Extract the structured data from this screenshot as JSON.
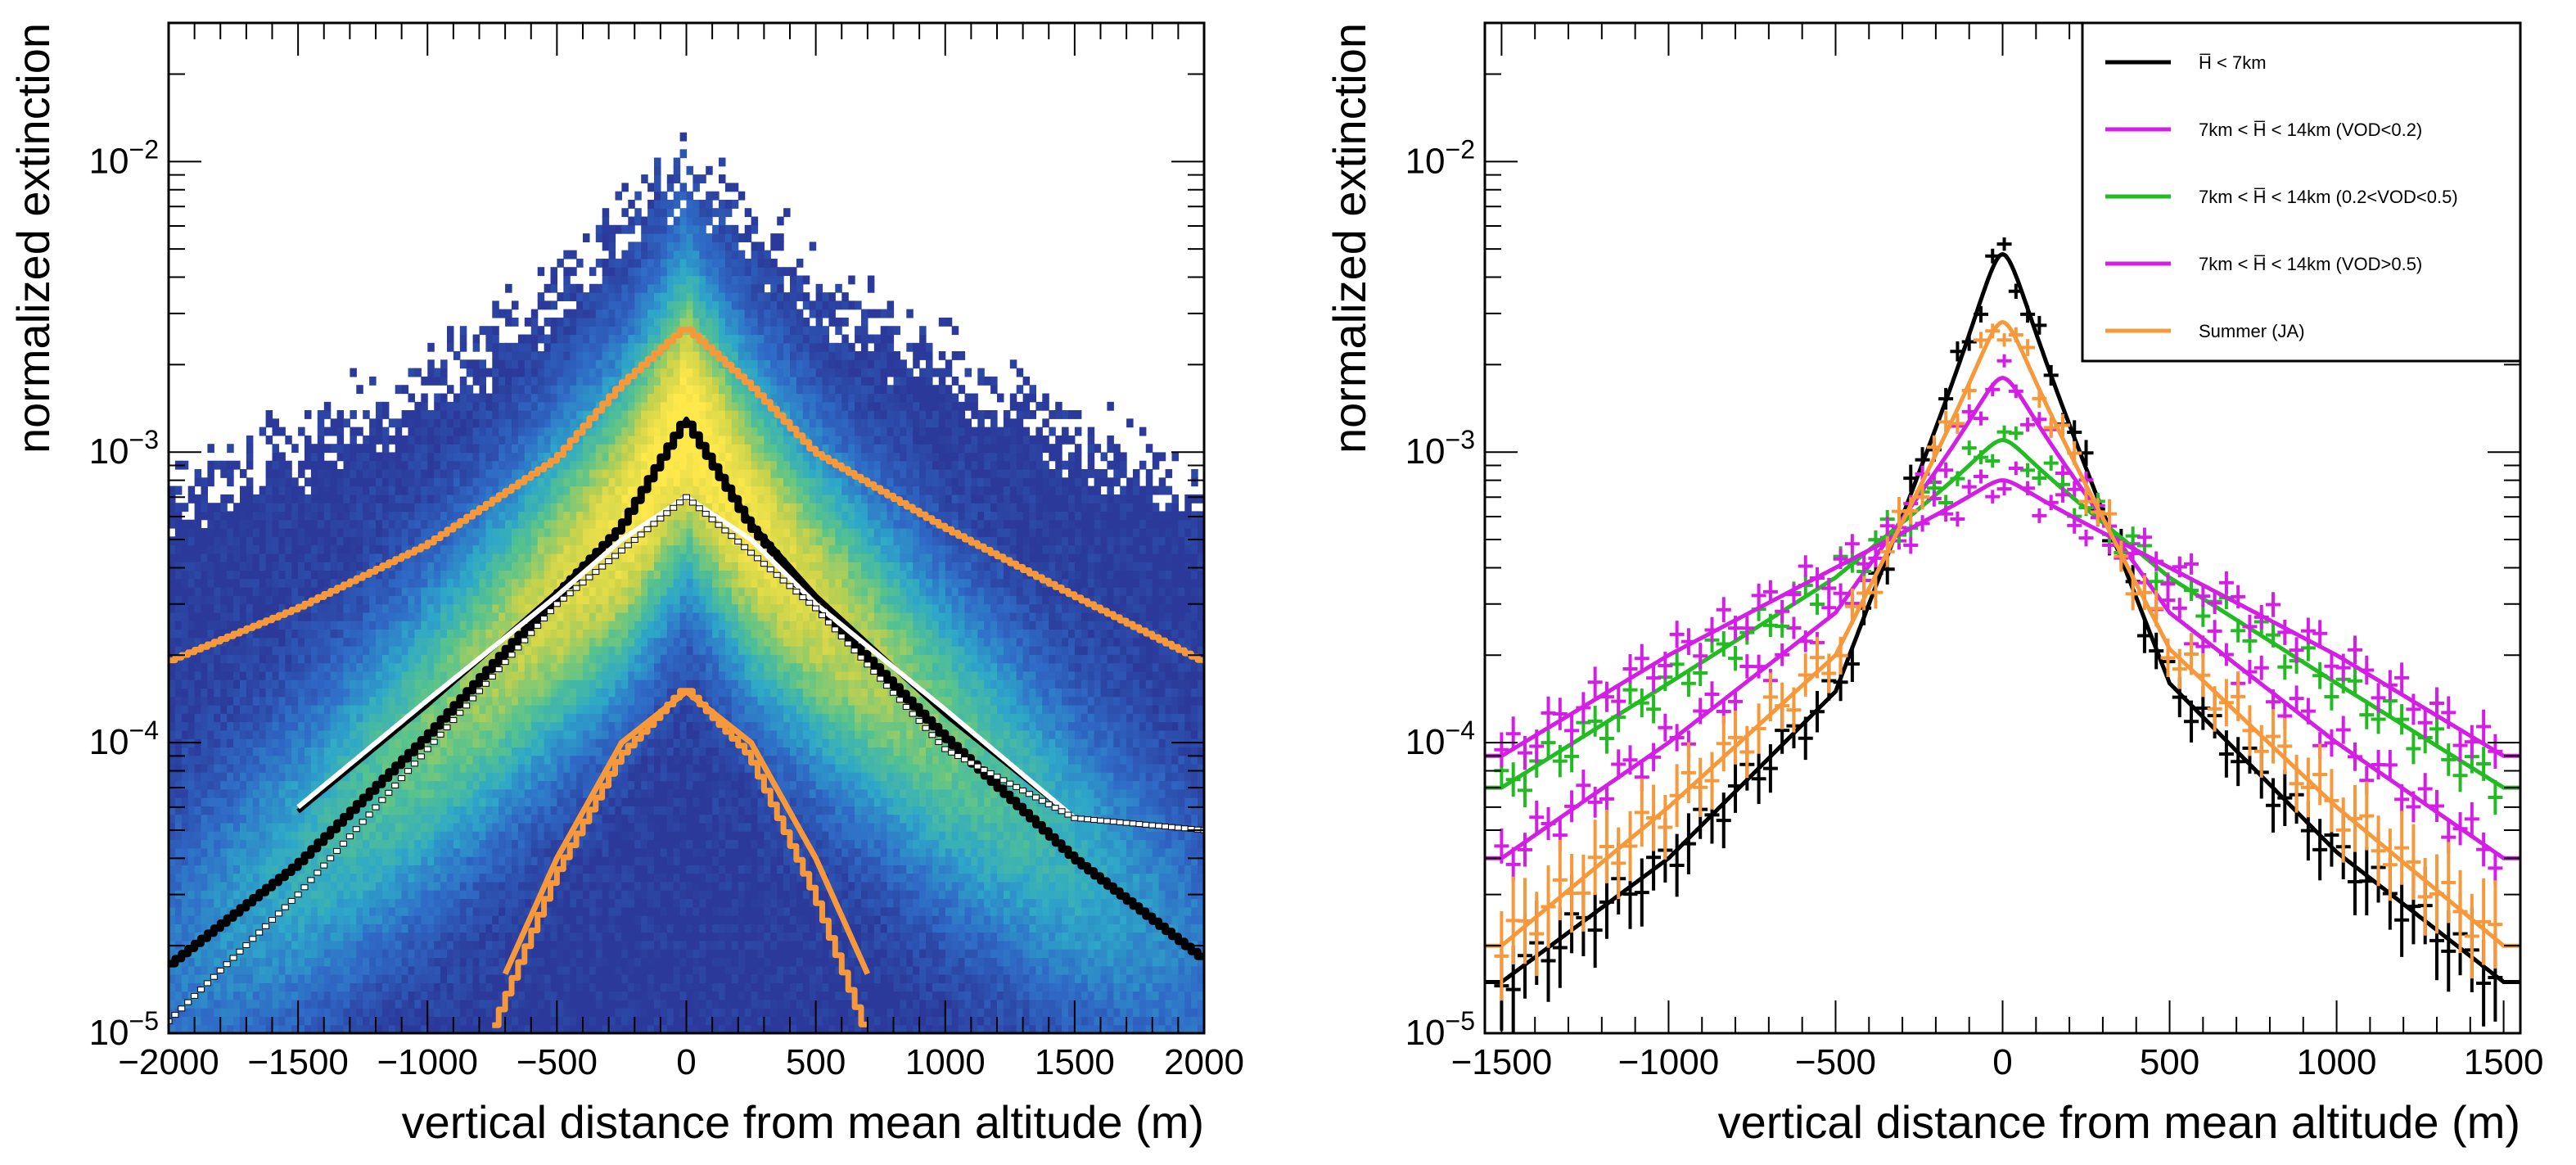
{
  "chart_data": [
    {
      "type": "heatmap",
      "title": "",
      "xlabel": "vertical distance from mean altitude (m)",
      "ylabel": "normalized extinction",
      "xlim": [
        -2000,
        2000
      ],
      "ylim": [
        1e-05,
        0.03
      ],
      "y_scale": "log",
      "grid": false,
      "x_ticks": [
        -2000,
        -1500,
        -1000,
        -500,
        0,
        500,
        1000,
        1500,
        2000
      ],
      "x_tick_labels": [
        "−2000",
        "−1500",
        "−1000",
        "−500",
        "0",
        "500",
        "1000",
        "1500",
        "2000"
      ],
      "y_ticks": [
        1e-05,
        0.0001,
        0.001,
        0.01
      ],
      "y_tick_labels": [
        {
          "base": "10",
          "exp": "−5"
        },
        {
          "base": "10",
          "exp": "−4"
        },
        {
          "base": "10",
          "exp": "−3"
        },
        {
          "base": "10",
          "exp": "−2"
        }
      ],
      "colormap": [
        "#2b3a9a",
        "#2f6bc7",
        "#2ea7c9",
        "#56c38e",
        "#c8d24a",
        "#ffe84a"
      ],
      "series": [
        {
          "color": "#f7993a",
          "kind": "upper percentile profile",
          "x": [
            -2000,
            -1500,
            -1000,
            -500,
            -250,
            0,
            250,
            500,
            1000,
            1500,
            2000
          ],
          "y": [
            0.00019,
            0.00029,
            0.00048,
            0.00095,
            0.0017,
            0.0027,
            0.0017,
            0.001,
            0.00055,
            0.00032,
            0.00019
          ]
        },
        {
          "color": "#000000",
          "kind": "median profile",
          "x": [
            -2000,
            -1500,
            -1000,
            -500,
            -250,
            0,
            250,
            500,
            1000,
            1500,
            2000
          ],
          "y": [
            1.7e-05,
            3.8e-05,
            0.000105,
            0.00032,
            0.00055,
            0.0013,
            0.00056,
            0.0003,
            0.000105,
            4e-05,
            1.8e-05
          ]
        },
        {
          "color": "#000000",
          "kind": "fit",
          "x": [
            -1500,
            -1000,
            -500,
            -250,
            0,
            250,
            500,
            1000,
            1500
          ],
          "y": [
            5.8e-05,
            0.000135,
            0.00033,
            0.00055,
            0.0013,
            0.00057,
            0.00032,
            0.000125,
            5.5e-05
          ]
        },
        {
          "color": "#ffffff",
          "kind": "fit",
          "x": [
            -1500,
            -1000,
            -500,
            -250,
            0,
            250,
            500,
            1000,
            1500
          ],
          "y": [
            6e-05,
            0.00014,
            0.00032,
            0.0005,
            0.0007,
            0.0005,
            0.0003,
            0.00013,
            5.5e-05
          ]
        },
        {
          "color": "#ffffff",
          "kind": "mean points",
          "x": [
            -2000,
            -1500,
            -1000,
            -500,
            0,
            500,
            1000,
            1500,
            2000
          ],
          "y": [
            1.1e-05,
            3e-05,
            9.5e-05,
            0.0003,
            0.0007,
            0.00029,
            9.5e-05,
            5.5e-05,
            5e-05
          ]
        },
        {
          "color": "#f7993a",
          "kind": "lower percentile profile",
          "x": [
            -750,
            -500,
            -250,
            0,
            250,
            500,
            700
          ],
          "y": [
            1e-05,
            3.5e-05,
            9e-05,
            0.000155,
            9e-05,
            3e-05,
            1e-05
          ]
        },
        {
          "color": "#f7993a",
          "kind": "gaussian fit",
          "x": [
            -700,
            -500,
            -250,
            0,
            250,
            500,
            700
          ],
          "y": [
            1.6e-05,
            4e-05,
            0.0001,
            0.00015,
            0.0001,
            4e-05,
            1.6e-05
          ]
        }
      ]
    },
    {
      "type": "line",
      "title": "",
      "xlabel": "vertical distance from mean altitude (m)",
      "ylabel": "normalized extinction",
      "xlim": [
        -1550,
        1550
      ],
      "ylim": [
        1e-05,
        0.03
      ],
      "y_scale": "log",
      "grid": false,
      "legend_position": "top-right",
      "x_ticks": [
        -1500,
        -1000,
        -500,
        0,
        500,
        1000,
        1500
      ],
      "x_tick_labels": [
        "−1500",
        "−1000",
        "−500",
        "0",
        "500",
        "1000",
        "1500"
      ],
      "y_ticks": [
        1e-05,
        0.0001,
        0.001,
        0.01
      ],
      "y_tick_labels": [
        {
          "base": "10",
          "exp": "−5"
        },
        {
          "base": "10",
          "exp": "−4"
        },
        {
          "base": "10",
          "exp": "−3"
        },
        {
          "base": "10",
          "exp": "−2"
        }
      ],
      "series": [
        {
          "name": "H̅ < 7km",
          "color": "#000000",
          "peak": 0.0048,
          "x": [
            -1500,
            -1000,
            -500,
            0,
            500,
            1000,
            1500
          ],
          "y": [
            1.5e-05,
            4e-05,
            0.00015,
            0.0048,
            0.00016,
            4.2e-05,
            1.5e-05
          ]
        },
        {
          "name": "7km < H̅ < 14km (VOD<0.2)",
          "color": "#d41ee6",
          "peak": 0.0018,
          "x": [
            -1500,
            -1000,
            -500,
            0,
            500,
            1000,
            1500
          ],
          "y": [
            4e-05,
            0.0001,
            0.00028,
            0.0018,
            0.00028,
            0.0001,
            4e-05
          ]
        },
        {
          "name": "7km < H̅ < 14km (0.2<VOD<0.5)",
          "color": "#22bb22",
          "peak": 0.0011,
          "x": [
            -1500,
            -1000,
            -500,
            0,
            500,
            1000,
            1500
          ],
          "y": [
            7e-05,
            0.00016,
            0.00037,
            0.0011,
            0.00037,
            0.00016,
            7e-05
          ]
        },
        {
          "name": "7km < H̅ < 14km (VOD>0.5)",
          "color": "#d41ee6",
          "peak": 0.0008,
          "x": [
            -1500,
            -1000,
            -500,
            0,
            500,
            1000,
            1500
          ],
          "y": [
            9e-05,
            0.0002,
            0.0004,
            0.0008,
            0.0004,
            0.0002,
            9e-05
          ]
        },
        {
          "name": "Summer (JA)",
          "color": "#f7993a",
          "peak": 0.0028,
          "x": [
            -1500,
            -1000,
            -500,
            0,
            500,
            1000,
            1500
          ],
          "y": [
            2e-05,
            6e-05,
            0.0002,
            0.0028,
            0.00021,
            6e-05,
            2e-05
          ]
        }
      ]
    }
  ]
}
